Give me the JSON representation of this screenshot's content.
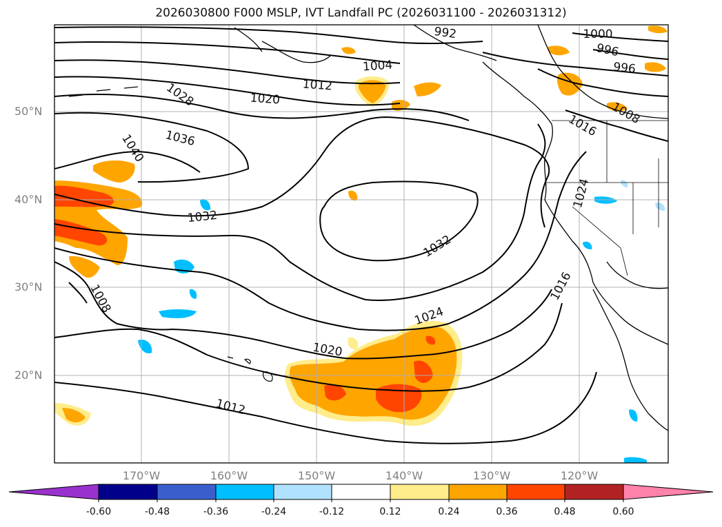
{
  "title": "2026030800 F000 MSLP, IVT Landfall PC (2026031100 - 2026031312)",
  "map": {
    "lat_labels": [
      "50°N",
      "40°N",
      "30°N",
      "20°N"
    ],
    "lon_labels": [
      "170°W",
      "160°W",
      "150°W",
      "140°W",
      "130°W",
      "120°W"
    ],
    "isobar_labels": [
      "1000",
      "996",
      "996",
      "1004",
      "1012",
      "1020",
      "1028",
      "1036",
      "1040",
      "1032",
      "1032",
      "1024",
      "1020",
      "1012",
      "1008",
      "1016",
      "1016",
      "1008",
      "1024",
      "992"
    ]
  },
  "colorbar": {
    "ticks": [
      "-0.60",
      "-0.48",
      "-0.36",
      "-0.24",
      "-0.12",
      "0.12",
      "0.24",
      "0.36",
      "0.48",
      "0.60"
    ],
    "colors": [
      "#9932cc",
      "#00008b",
      "#3a5fcd",
      "#00bfff",
      "#b0e2ff",
      "#ffffff",
      "#ffec8b",
      "#ffa500",
      "#ff4500",
      "#b22222",
      "#ff83aa"
    ]
  }
}
